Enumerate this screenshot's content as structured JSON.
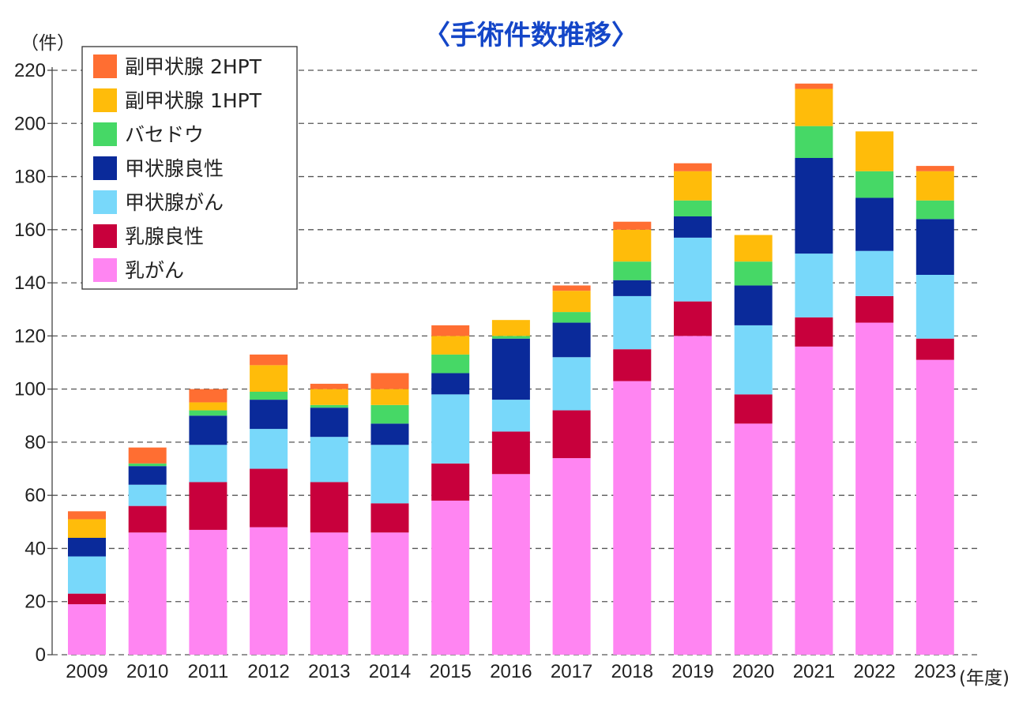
{
  "chart_data": {
    "type": "bar",
    "stacked": true,
    "title": "〈手術件数推移〉",
    "y_unit_label": "（件）",
    "x_unit_label": "(年度)",
    "ylim": [
      0,
      220
    ],
    "yticks": [
      0,
      20,
      40,
      60,
      80,
      100,
      120,
      140,
      160,
      180,
      200,
      220
    ],
    "grid": "horizontal dashed",
    "legend_position": "top-left",
    "categories": [
      "2009",
      "2010",
      "2011",
      "2012",
      "2013",
      "2014",
      "2015",
      "2016",
      "2017",
      "2018",
      "2019",
      "2020",
      "2021",
      "2022",
      "2023"
    ],
    "series": [
      {
        "name": "乳がん",
        "color": "#ff85f2",
        "values": [
          19,
          46,
          47,
          48,
          46,
          46,
          58,
          68,
          74,
          103,
          120,
          87,
          116,
          125,
          111
        ]
      },
      {
        "name": "乳腺良性",
        "color": "#c8003c",
        "values": [
          4,
          10,
          18,
          22,
          19,
          11,
          14,
          16,
          18,
          12,
          13,
          11,
          11,
          10,
          8
        ]
      },
      {
        "name": "甲状腺がん",
        "color": "#78d8fa",
        "values": [
          14,
          8,
          14,
          15,
          17,
          22,
          26,
          12,
          20,
          20,
          24,
          26,
          24,
          17,
          24
        ]
      },
      {
        "name": "甲状腺良性",
        "color": "#0a2a9a",
        "values": [
          7,
          7,
          11,
          11,
          11,
          8,
          8,
          23,
          13,
          6,
          8,
          15,
          36,
          20,
          21
        ]
      },
      {
        "name": "バセドウ",
        "color": "#46d866",
        "values": [
          0,
          1,
          2,
          3,
          1,
          7,
          7,
          1,
          4,
          7,
          6,
          9,
          12,
          10,
          7
        ]
      },
      {
        "name": "副甲状腺 1HPT",
        "color": "#ffbc0a",
        "values": [
          7,
          0,
          3,
          10,
          6,
          6,
          7,
          6,
          8,
          12,
          11,
          10,
          14,
          15,
          11
        ]
      },
      {
        "name": "副甲状腺 2HPT",
        "color": "#ff6e32",
        "values": [
          3,
          6,
          5,
          4,
          2,
          6,
          4,
          0,
          2,
          3,
          3,
          0,
          2,
          0,
          2
        ]
      }
    ]
  }
}
